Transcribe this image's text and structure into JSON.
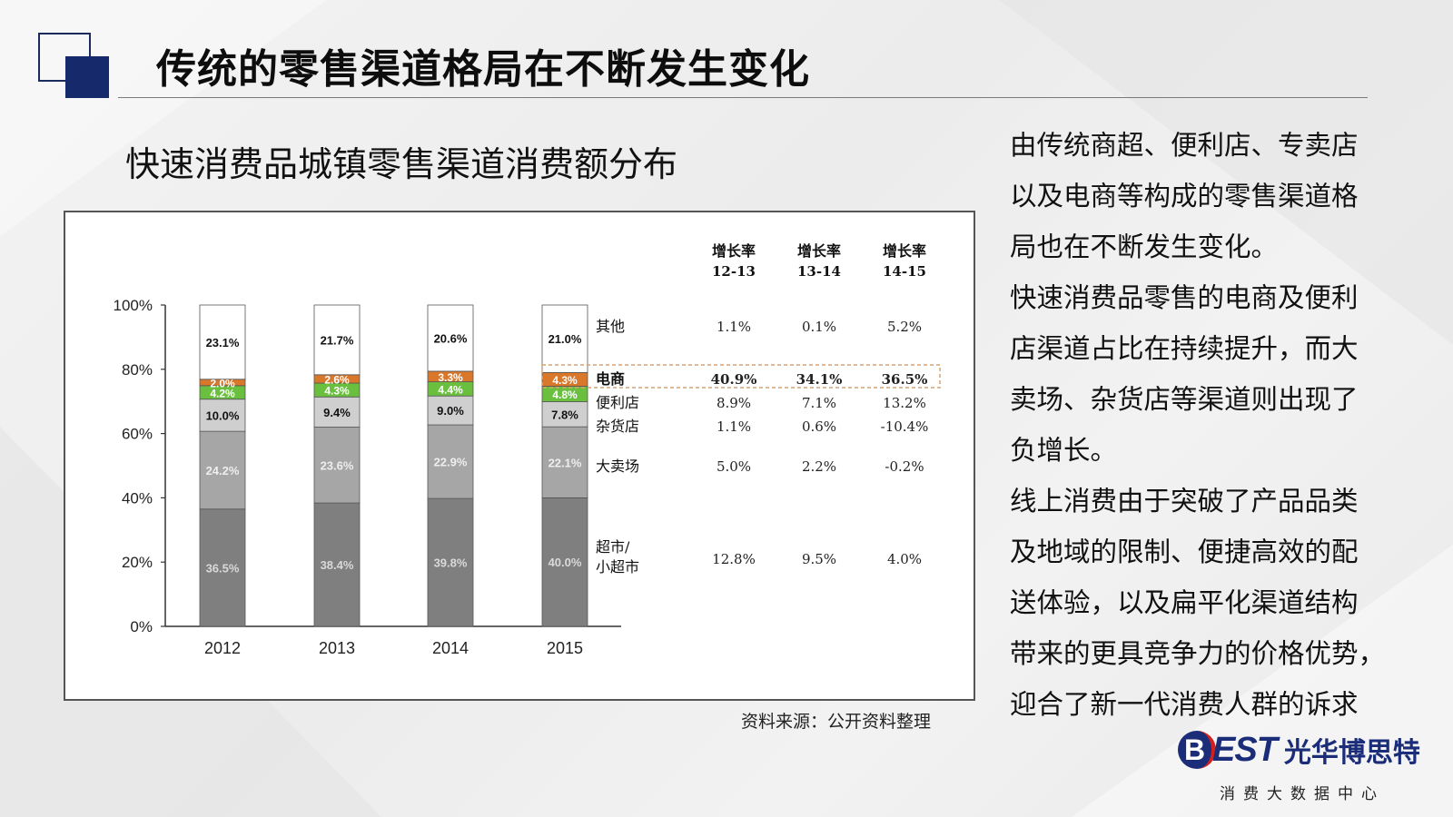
{
  "header": {
    "title": "传统的零售渠道格局在不断发生变化"
  },
  "chart_section": {
    "subtitle": "快速消费品城镇零售渠道消费额分布",
    "source_note": "资料来源：公开资料整理"
  },
  "chart_data": {
    "type": "bar",
    "stacked": true,
    "categories": [
      "2012",
      "2013",
      "2014",
      "2015"
    ],
    "ylim": [
      0,
      100
    ],
    "y_ticks": [
      "0%",
      "20%",
      "40%",
      "60%",
      "80%",
      "100%"
    ],
    "grid": false,
    "series": [
      {
        "name": "超市/小超市",
        "values": [
          36.5,
          38.4,
          39.8,
          40.0
        ],
        "labels": [
          "36.5%",
          "38.4%",
          "39.8%",
          "40.0%"
        ],
        "color": "#7f7f7f",
        "label_color": "#d9d9d9"
      },
      {
        "name": "大卖场",
        "values": [
          24.2,
          23.6,
          22.9,
          22.1
        ],
        "labels": [
          "24.2%",
          "23.6%",
          "22.9%",
          "22.1%"
        ],
        "color": "#a6a6a6",
        "label_color": "#eeeeee"
      },
      {
        "name": "杂货店",
        "values": [
          10.0,
          9.4,
          9.0,
          7.8
        ],
        "labels": [
          "10.0%",
          "9.4%",
          "9.0%",
          "7.8%"
        ],
        "color": "#cfcfcf",
        "label_color": "#111111"
      },
      {
        "name": "便利店",
        "values": [
          4.2,
          4.3,
          4.4,
          4.8
        ],
        "labels": [
          "4.2%",
          "4.3%",
          "4.4%",
          "4.8%"
        ],
        "color": "#6abf3f",
        "label_color": "#ffffff"
      },
      {
        "name": "电商",
        "values": [
          2.0,
          2.6,
          3.3,
          4.3
        ],
        "labels": [
          "2.0%",
          "2.6%",
          "3.3%",
          "4.3%"
        ],
        "color": "#d9772a",
        "label_color": "#ffffff"
      },
      {
        "name": "其他",
        "values": [
          23.1,
          21.7,
          20.6,
          21.0
        ],
        "labels": [
          "23.1%",
          "21.7%",
          "20.6%",
          "21.0%"
        ],
        "color": "#ffffff",
        "label_color": "#111111"
      }
    ],
    "growth_table": {
      "headers": [
        {
          "line1": "增长率",
          "line2": "12-13"
        },
        {
          "line1": "增长率",
          "line2": "13-14"
        },
        {
          "line1": "增长率",
          "line2": "14-15"
        }
      ],
      "rows": [
        {
          "label": "其他",
          "values": [
            "1.1%",
            "0.1%",
            "5.2%"
          ],
          "highlight": false
        },
        {
          "label": "电商",
          "values": [
            "40.9%",
            "34.1%",
            "36.5%"
          ],
          "highlight": true
        },
        {
          "label": "便利店",
          "values": [
            "8.9%",
            "7.1%",
            "13.2%"
          ],
          "highlight": false
        },
        {
          "label": "杂货店",
          "values": [
            "1.1%",
            "0.6%",
            "-10.4%"
          ],
          "highlight": false
        },
        {
          "label": "大卖场",
          "values": [
            "5.0%",
            "2.2%",
            "-0.2%"
          ],
          "highlight": false
        },
        {
          "label": "超市/小超市",
          "label_lines": [
            "超市/",
            "小超市"
          ],
          "values": [
            "12.8%",
            "9.5%",
            "4.0%"
          ],
          "highlight": false
        }
      ]
    }
  },
  "body_text": {
    "paragraphs": [
      {
        "lines": [
          "由传统商超、便利店、专卖店",
          "以及电商等构成的零售渠道格",
          "局也在不断发生变化。"
        ]
      },
      {
        "lines": [
          "快速消费品零售的电商及便利",
          "店渠道占比在持续提升，而大",
          "卖场、杂货店等渠道则出现了",
          "负增长。"
        ]
      },
      {
        "lines": [
          "线上消费由于突破了产品品类",
          "及地域的限制、便捷高效的配",
          "送体验，以及扁平化渠道结构",
          "带来的更具竞争力的价格优势，",
          "迎合了新一代消费人群的诉求"
        ]
      }
    ]
  },
  "brand": {
    "mark_letter": "B",
    "mark_text": "EST",
    "name": "光华博思特",
    "tagline": "消费大数据中心"
  }
}
